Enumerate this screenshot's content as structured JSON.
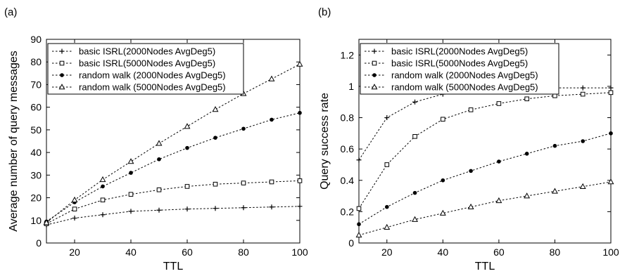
{
  "chart_data": [
    {
      "type": "line",
      "panel_label": "(a)",
      "xlabel": "TTL",
      "ylabel": "Average number of query messages",
      "xlim": [
        10,
        100
      ],
      "ylim": [
        0,
        90
      ],
      "xticks": [
        20,
        40,
        60,
        80,
        100
      ],
      "yticks": [
        0,
        10,
        20,
        30,
        40,
        50,
        60,
        70,
        80,
        90
      ],
      "grid": false,
      "legend_position": "top-left",
      "x": [
        10,
        20,
        30,
        40,
        50,
        60,
        70,
        80,
        90,
        100
      ],
      "series": [
        {
          "name": "basic ISRL(2000Nodes AvgDeg5)",
          "marker": "plus",
          "values": [
            8,
            11,
            12.5,
            14,
            14.5,
            15,
            15.3,
            15.6,
            15.9,
            16.2
          ]
        },
        {
          "name": "basic ISRL(5000Nodes AvgDeg5)",
          "marker": "square",
          "values": [
            8.5,
            15,
            19,
            21.5,
            23.5,
            25,
            26,
            26.5,
            27,
            27.5
          ]
        },
        {
          "name": "random walk (2000Nodes AvgDeg5)",
          "marker": "dot",
          "values": [
            9.5,
            18,
            25,
            31,
            37,
            42,
            46.5,
            50.5,
            54.5,
            57.5
          ]
        },
        {
          "name": "random walk (5000Nodes AvgDeg5)",
          "marker": "triangle",
          "values": [
            9,
            19,
            28,
            36,
            44,
            51.5,
            59,
            66,
            72.5,
            79
          ]
        }
      ]
    },
    {
      "type": "line",
      "panel_label": "(b)",
      "xlabel": "TTL",
      "ylabel": "Query success rate",
      "xlim": [
        10,
        100
      ],
      "ylim": [
        0,
        1.3
      ],
      "xticks": [
        20,
        40,
        60,
        80,
        100
      ],
      "yticks": [
        0,
        0.2,
        0.4,
        0.6,
        0.8,
        1,
        1.2
      ],
      "grid": false,
      "legend_position": "top-left",
      "x": [
        10,
        20,
        30,
        40,
        50,
        60,
        70,
        80,
        90,
        100
      ],
      "series": [
        {
          "name": "basic ISRL(2000Nodes AvgDeg5)",
          "marker": "plus",
          "values": [
            0.53,
            0.8,
            0.9,
            0.95,
            0.97,
            0.98,
            0.99,
            0.99,
            0.99,
            0.99
          ]
        },
        {
          "name": "basic ISRL(5000Nodes AvgDeg5)",
          "marker": "square",
          "values": [
            0.22,
            0.5,
            0.68,
            0.79,
            0.85,
            0.89,
            0.92,
            0.94,
            0.95,
            0.96
          ]
        },
        {
          "name": "random walk (2000Nodes AvgDeg5)",
          "marker": "dot",
          "values": [
            0.12,
            0.23,
            0.32,
            0.4,
            0.46,
            0.52,
            0.57,
            0.62,
            0.65,
            0.7
          ]
        },
        {
          "name": "random walk (5000Nodes AvgDeg5)",
          "marker": "triangle",
          "values": [
            0.05,
            0.1,
            0.15,
            0.19,
            0.23,
            0.27,
            0.3,
            0.33,
            0.36,
            0.39
          ]
        }
      ]
    }
  ]
}
